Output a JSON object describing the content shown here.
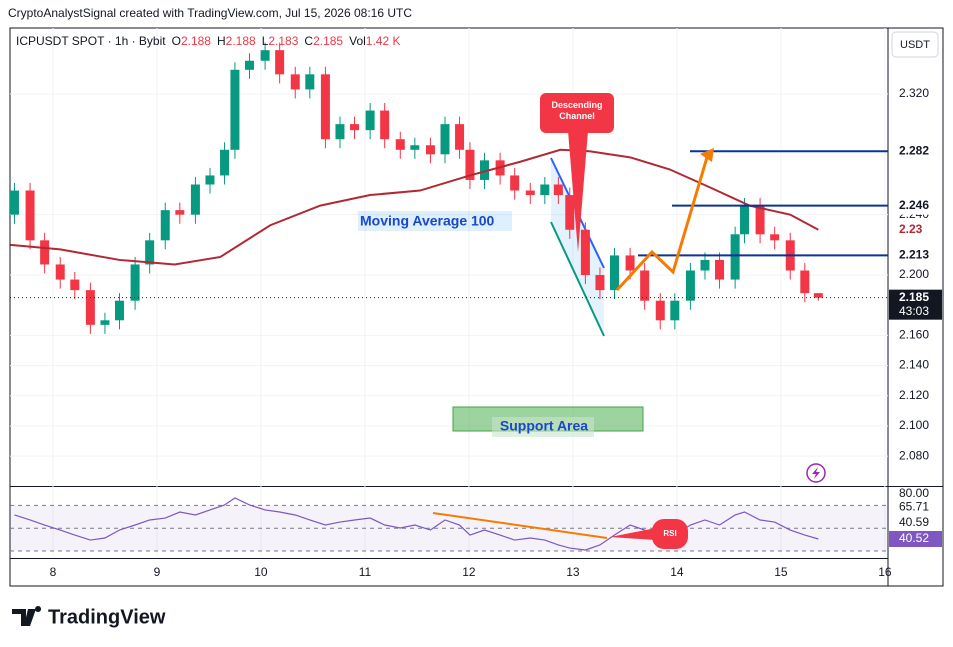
{
  "header": "CryptoAnalystSignal created with TradingView.com, Jul 15, 2026 08:16 UTC",
  "currency": "USDT",
  "brand": "TradingView",
  "annotations": {
    "channel": "Descending Channel",
    "support": "Support Area",
    "rsi": "RSI"
  },
  "chart_data": [
    {
      "type": "candlestick",
      "symbol": "ICPUSDT SPOT · 1h · Bybit",
      "legend": [
        {
          "key": "O",
          "value": 2.188
        },
        {
          "key": "H",
          "value": 2.188
        },
        {
          "key": "L",
          "value": 2.183
        },
        {
          "key": "C",
          "value": 2.185
        },
        {
          "key": "Vol",
          "value": 1420,
          "label": "1.42 K"
        }
      ],
      "up_color": "#089981",
      "down_color": "#f23645",
      "x": [
        7.63,
        7.78,
        7.92,
        8.07,
        8.21,
        8.36,
        8.5,
        8.64,
        8.79,
        8.93,
        9.08,
        9.22,
        9.37,
        9.51,
        9.65,
        9.75,
        9.89,
        10.04,
        10.18,
        10.33,
        10.47,
        10.62,
        10.76,
        10.9,
        11.05,
        11.19,
        11.34,
        11.48,
        11.63,
        11.77,
        11.91,
        12.01,
        12.15,
        12.3,
        12.44,
        12.59,
        12.73,
        12.86,
        12.97,
        13.12,
        13.26,
        13.4,
        13.55,
        13.69,
        13.84,
        13.98,
        14.13,
        14.27,
        14.41,
        14.56,
        14.65,
        14.8,
        14.94,
        15.09,
        15.23,
        15.36
      ],
      "open": [
        2.24,
        2.256,
        2.223,
        2.207,
        2.197,
        2.19,
        2.167,
        2.17,
        2.183,
        2.207,
        2.223,
        2.243,
        2.24,
        2.26,
        2.266,
        2.283,
        2.336,
        2.342,
        2.349,
        2.333,
        2.323,
        2.333,
        2.29,
        2.3,
        2.296,
        2.309,
        2.29,
        2.283,
        2.286,
        2.28,
        2.3,
        2.283,
        2.263,
        2.276,
        2.266,
        2.256,
        2.253,
        2.26,
        2.253,
        2.23,
        2.2,
        2.19,
        2.213,
        2.203,
        2.183,
        2.17,
        2.183,
        2.203,
        2.21,
        2.197,
        2.227,
        2.246,
        2.227,
        2.223,
        2.203,
        2.188
      ],
      "high": [
        2.261,
        2.261,
        2.228,
        2.212,
        2.202,
        2.195,
        2.175,
        2.188,
        2.212,
        2.228,
        2.248,
        2.248,
        2.265,
        2.271,
        2.288,
        2.341,
        2.347,
        2.354,
        2.354,
        2.338,
        2.338,
        2.338,
        2.305,
        2.305,
        2.314,
        2.314,
        2.295,
        2.291,
        2.291,
        2.305,
        2.305,
        2.288,
        2.281,
        2.281,
        2.271,
        2.261,
        2.265,
        2.265,
        2.258,
        2.235,
        2.205,
        2.218,
        2.218,
        2.208,
        2.188,
        2.188,
        2.208,
        2.215,
        2.215,
        2.232,
        2.251,
        2.251,
        2.232,
        2.228,
        2.208,
        2.188
      ],
      "low": [
        2.234,
        2.217,
        2.201,
        2.191,
        2.184,
        2.161,
        2.161,
        2.164,
        2.177,
        2.201,
        2.217,
        2.234,
        2.234,
        2.254,
        2.26,
        2.277,
        2.33,
        2.336,
        2.327,
        2.317,
        2.317,
        2.284,
        2.284,
        2.29,
        2.29,
        2.284,
        2.277,
        2.277,
        2.274,
        2.274,
        2.277,
        2.257,
        2.257,
        2.26,
        2.25,
        2.247,
        2.247,
        2.247,
        2.224,
        2.194,
        2.184,
        2.184,
        2.197,
        2.177,
        2.164,
        2.164,
        2.177,
        2.197,
        2.191,
        2.191,
        2.221,
        2.221,
        2.217,
        2.197,
        2.182,
        2.183
      ],
      "close": [
        2.256,
        2.223,
        2.207,
        2.197,
        2.19,
        2.167,
        2.17,
        2.183,
        2.207,
        2.223,
        2.243,
        2.24,
        2.26,
        2.266,
        2.283,
        2.336,
        2.342,
        2.349,
        2.333,
        2.323,
        2.333,
        2.29,
        2.3,
        2.296,
        2.309,
        2.29,
        2.283,
        2.286,
        2.28,
        2.3,
        2.283,
        2.263,
        2.276,
        2.266,
        2.256,
        2.253,
        2.26,
        2.253,
        2.23,
        2.2,
        2.19,
        2.213,
        2.203,
        2.183,
        2.17,
        2.183,
        2.203,
        2.21,
        2.197,
        2.227,
        2.246,
        2.227,
        2.223,
        2.203,
        2.188,
        2.185
      ],
      "moving_average": {
        "name": "Moving Average 100",
        "color": "#b22833",
        "x": [
          7.59,
          8.07,
          8.64,
          9.17,
          9.61,
          10.09,
          10.57,
          11.05,
          11.53,
          12.01,
          12.49,
          12.88,
          13.16,
          13.55,
          13.93,
          14.32,
          14.7,
          15.09,
          15.36
        ],
        "values": [
          2.22,
          2.217,
          2.21,
          2.207,
          2.212,
          2.233,
          2.246,
          2.253,
          2.256,
          2.266,
          2.275,
          2.283,
          2.282,
          2.278,
          2.27,
          2.258,
          2.246,
          2.24,
          2.23
        ]
      },
      "levels": [
        2.282,
        2.246,
        2.213
      ],
      "level_color": "#0c3299",
      "last_price": 2.185,
      "countdown": "43:03",
      "xlim": [
        7.587,
        16.03
      ],
      "ylim": [
        2.0602,
        2.3637
      ],
      "xticks": [
        8,
        9,
        10,
        11,
        12,
        13,
        14,
        15,
        16
      ],
      "yticks": [
        {
          "value": 2.08,
          "label": "2.080"
        },
        {
          "value": 2.1,
          "label": "2.100"
        },
        {
          "value": 2.12,
          "label": "2.120"
        },
        {
          "value": 2.14,
          "label": "2.140"
        },
        {
          "value": 2.16,
          "label": "2.160"
        },
        {
          "value": 2.2,
          "label": "2.200"
        },
        {
          "value": 2.24,
          "label": "2.240"
        },
        {
          "value": 2.32,
          "label": "2.320"
        }
      ],
      "grid": true
    },
    {
      "type": "line",
      "color": "#7e57c2",
      "x": [
        7.63,
        7.78,
        7.92,
        8.07,
        8.21,
        8.36,
        8.5,
        8.64,
        8.79,
        8.93,
        9.08,
        9.22,
        9.37,
        9.51,
        9.65,
        9.75,
        9.89,
        10.04,
        10.18,
        10.33,
        10.47,
        10.62,
        10.76,
        10.9,
        11.05,
        11.19,
        11.34,
        11.48,
        11.63,
        11.77,
        11.91,
        12.01,
        12.15,
        12.3,
        12.44,
        12.59,
        12.73,
        12.86,
        12.97,
        13.12,
        13.26,
        13.4,
        13.55,
        13.69,
        13.84,
        13.98,
        14.13,
        14.27,
        14.41,
        14.56,
        14.65,
        14.8,
        14.94,
        15.09,
        15.23,
        15.36
      ],
      "values": [
        61.6,
        57.2,
        52.8,
        48.4,
        44.0,
        39.6,
        41.4,
        48.4,
        52.8,
        57.2,
        58.9,
        64.2,
        61.6,
        66.0,
        70.4,
        76.5,
        70.4,
        66.0,
        64.2,
        61.6,
        57.2,
        52.8,
        55.4,
        57.2,
        58.9,
        52.8,
        50.2,
        52.8,
        48.4,
        57.2,
        52.8,
        44.0,
        48.4,
        44.0,
        39.6,
        41.4,
        39.6,
        35.3,
        32.6,
        30.9,
        35.3,
        44.0,
        52.8,
        48.4,
        39.6,
        44.0,
        52.8,
        57.2,
        52.8,
        61.6,
        64.2,
        57.2,
        55.4,
        48.4,
        44.0,
        40.52
      ],
      "bands": [
        65.71,
        40.59
      ],
      "levels": [
        70,
        50,
        30
      ],
      "xlim": [
        7.587,
        16.03
      ],
      "ylim": [
        23.86,
        85.26
      ],
      "yticks": [
        {
          "value": 80,
          "label": "80.00"
        }
      ]
    }
  ]
}
